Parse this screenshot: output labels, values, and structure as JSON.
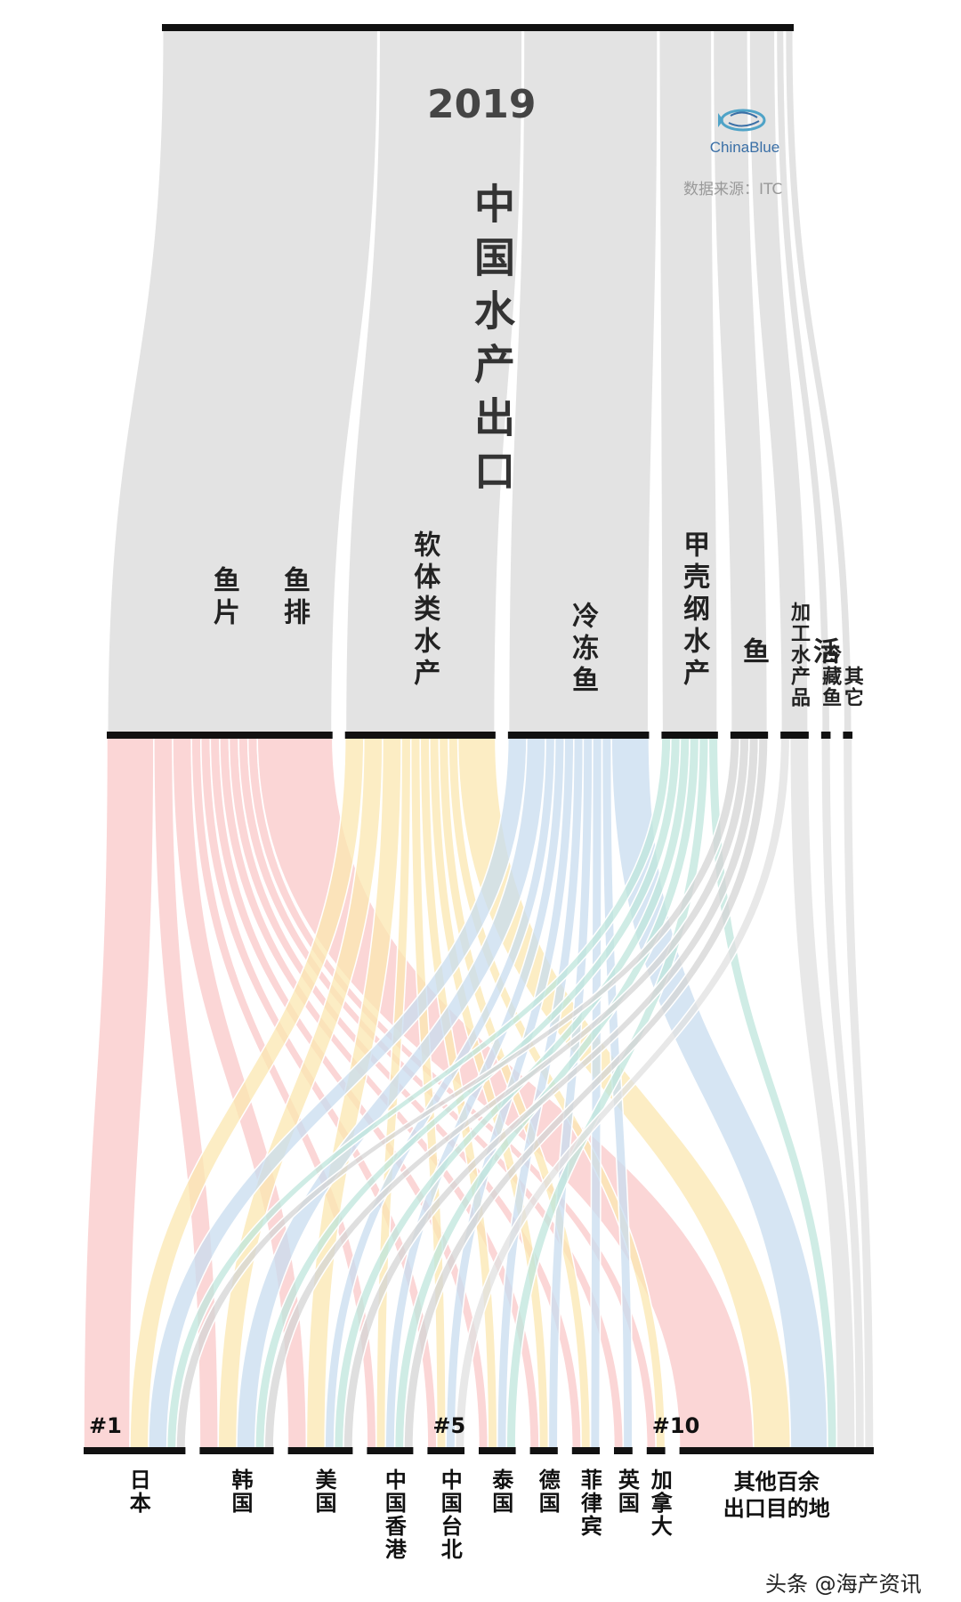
{
  "header": {
    "year": "2019",
    "title": "中国水产出口",
    "logo_text": "ChinaBlue",
    "source": "数据来源：ITC",
    "watermark": "头条 @海产资讯"
  },
  "chart_data": {
    "type": "sankey",
    "title": "中国水产出口",
    "categories": [
      {
        "name": "鱼排 鱼片",
        "label": "鱼排\n\n鱼片",
        "color": "#f9c8c8",
        "value": 24
      },
      {
        "name": "软体类水产",
        "label": "软体类水产",
        "color": "#fbe7b0",
        "value": 16
      },
      {
        "name": "冷冻鱼",
        "label": "冷冻鱼",
        "color": "#c8dcef",
        "value": 15
      },
      {
        "name": "甲壳纲水产",
        "label": "甲壳纲水产",
        "color": "#bfe5dc",
        "value": 6
      },
      {
        "name": "活鱼",
        "label": "活\n\n鱼",
        "color": "#d4d4d4",
        "value": 4
      },
      {
        "name": "加工水产品",
        "label": "加工水产品",
        "color": "#e0e0e0",
        "value": 3
      },
      {
        "name": "冷藏鱼",
        "label": "冷藏鱼",
        "color": "#e0e0e0",
        "value": 1
      },
      {
        "name": "其它",
        "label": "其它",
        "color": "#e0e0e0",
        "value": 1
      }
    ],
    "destinations": [
      {
        "name": "日本",
        "rank": "#1",
        "value": 11
      },
      {
        "name": "韩国",
        "rank": "",
        "value": 8
      },
      {
        "name": "美国",
        "rank": "",
        "value": 7
      },
      {
        "name": "中国香港",
        "rank": "",
        "value": 5
      },
      {
        "name": "中国台北",
        "rank": "#5",
        "value": 4
      },
      {
        "name": "泰国",
        "rank": "",
        "value": 4
      },
      {
        "name": "德国",
        "rank": "",
        "value": 3
      },
      {
        "name": "菲律宾",
        "rank": "",
        "value": 3
      },
      {
        "name": "英国",
        "rank": "",
        "value": 2
      },
      {
        "name": "加拿大",
        "rank": "#10",
        "value": 2
      },
      {
        "name": "其他百余出口目的地",
        "label": "其他百余\n出口目的地",
        "rank": "",
        "value": 21
      }
    ],
    "flows": [
      [
        5,
        2,
        2,
        1,
        1,
        1,
        1,
        1,
        1,
        1,
        8
      ],
      [
        2,
        2,
        2,
        1,
        1,
        1,
        1,
        1,
        0,
        1,
        4
      ],
      [
        2,
        2,
        1,
        1,
        1,
        1,
        1,
        1,
        1,
        0,
        4
      ],
      [
        1,
        1,
        1,
        1,
        0,
        1,
        0,
        0,
        0,
        0,
        1
      ],
      [
        1,
        1,
        1,
        1,
        0,
        0,
        0,
        0,
        0,
        0,
        0
      ],
      [
        0,
        0,
        0,
        0,
        1,
        0,
        0,
        0,
        0,
        0,
        2
      ],
      [
        0,
        0,
        0,
        0,
        0,
        0,
        0,
        0,
        0,
        0,
        1
      ],
      [
        0,
        0,
        0,
        0,
        0,
        0,
        0,
        0,
        0,
        0,
        1
      ]
    ]
  }
}
